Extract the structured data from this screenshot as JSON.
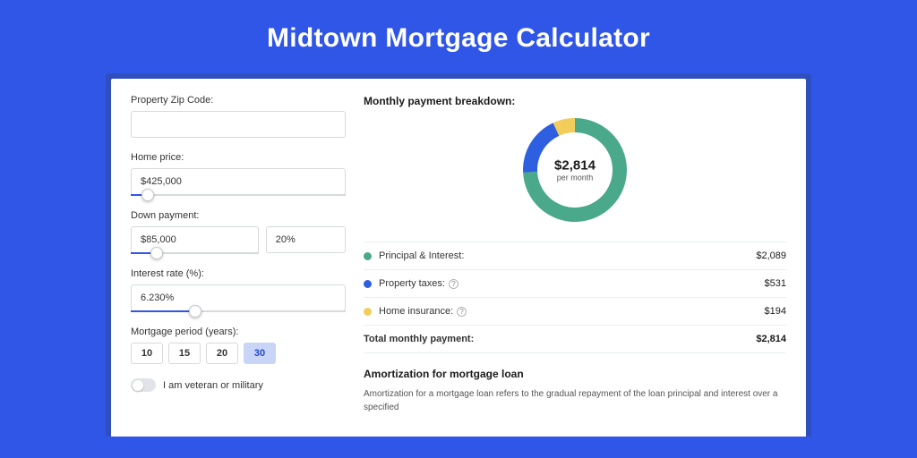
{
  "page": {
    "title": "Midtown Mortgage Calculator"
  },
  "colors": {
    "page_bg": "#3056e8",
    "header_wrap": "#304fbe",
    "accent": "#3056e8",
    "series_principal": "#4aa98a",
    "series_taxes": "#2d5fe0",
    "series_insurance": "#f2cd5a"
  },
  "form": {
    "zip": {
      "label": "Property Zip Code:",
      "value": ""
    },
    "home_price": {
      "label": "Home price:",
      "value": "$425,000",
      "slider_pct": 8
    },
    "down_payment": {
      "label": "Down payment:",
      "amount": "$85,000",
      "percent": "20%",
      "slider_pct": 20
    },
    "interest_rate": {
      "label": "Interest rate (%):",
      "value": "6.230%",
      "slider_pct": 30
    },
    "period": {
      "label": "Mortgage period (years):",
      "options": [
        "10",
        "15",
        "20",
        "30"
      ],
      "selected": "30"
    },
    "veteran": {
      "label": "I am veteran or military",
      "on": false
    }
  },
  "breakdown": {
    "title": "Monthly payment breakdown:",
    "center_amount": "$2,814",
    "center_sub": "per month",
    "donut": {
      "diameter": 120,
      "thickness": 16,
      "slices": [
        {
          "key": "principal",
          "pct": 74.24,
          "color": "#4aa98a"
        },
        {
          "key": "taxes",
          "pct": 18.87,
          "color": "#2d5fe0"
        },
        {
          "key": "insurance",
          "pct": 6.89,
          "color": "#f2cd5a"
        }
      ]
    },
    "rows": [
      {
        "color": "#4aa98a",
        "label": "Principal & Interest:",
        "value": "$2,089",
        "help": false
      },
      {
        "color": "#2d5fe0",
        "label": "Property taxes:",
        "value": "$531",
        "help": true
      },
      {
        "color": "#f2cd5a",
        "label": "Home insurance:",
        "value": "$194",
        "help": true
      }
    ],
    "total": {
      "label": "Total monthly payment:",
      "value": "$2,814"
    }
  },
  "amortization": {
    "title": "Amortization for mortgage loan",
    "text": "Amortization for a mortgage loan refers to the gradual repayment of the loan principal and interest over a specified"
  }
}
